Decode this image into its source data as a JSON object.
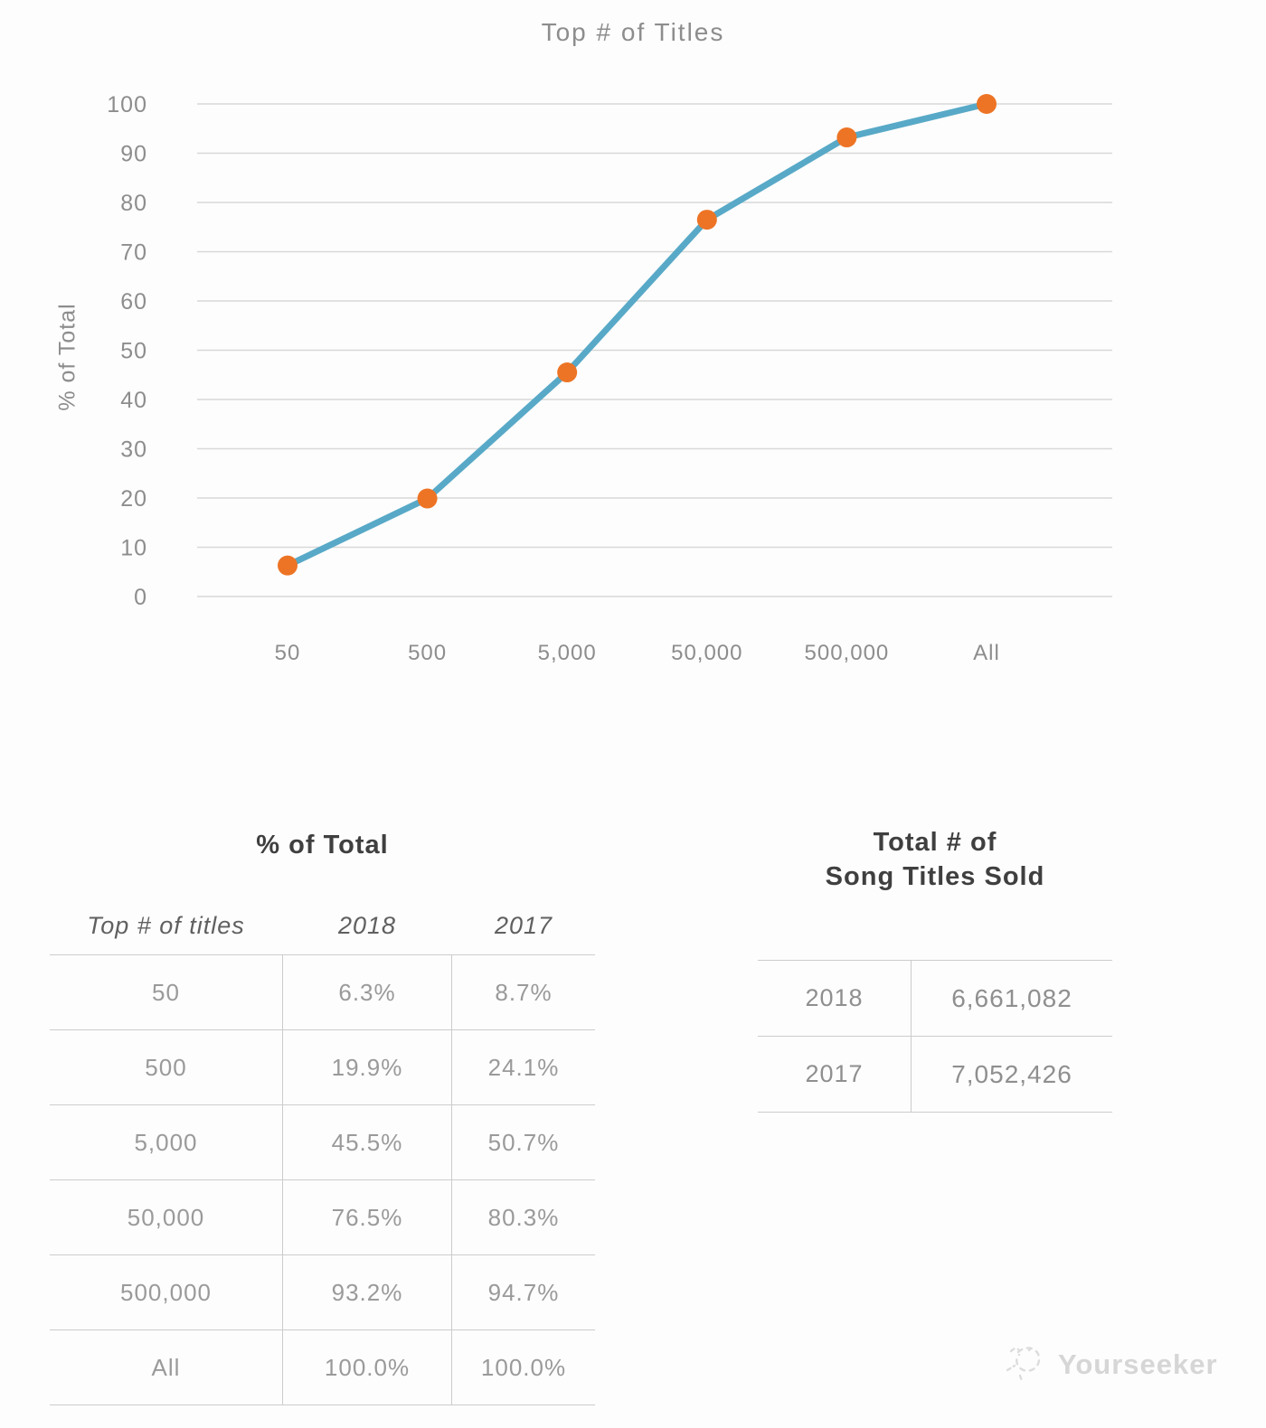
{
  "chart_data": {
    "type": "line",
    "title": "Top # of Titles",
    "xlabel": "",
    "ylabel": "% of Total",
    "categories": [
      "50",
      "500",
      "5,000",
      "50,000",
      "500,000",
      "All"
    ],
    "series": [
      {
        "name": "2018",
        "values": [
          6.3,
          19.9,
          45.5,
          76.5,
          93.2,
          100.0
        ]
      }
    ],
    "ylim": [
      0,
      100
    ],
    "ytick_step": 10,
    "grid": true,
    "legend_position": "none",
    "line_color": "#58a9c7",
    "marker_color": "#ed7425",
    "gridline_color": "#d8d8d8"
  },
  "percent_table": {
    "title": "% of Total",
    "headers": [
      "Top # of titles",
      "2018",
      "2017"
    ],
    "rows": [
      [
        "50",
        "6.3%",
        "8.7%"
      ],
      [
        "500",
        "19.9%",
        "24.1%"
      ],
      [
        "5,000",
        "45.5%",
        "50.7%"
      ],
      [
        "50,000",
        "76.5%",
        "80.3%"
      ],
      [
        "500,000",
        "93.2%",
        "94.7%"
      ],
      [
        "All",
        "100.0%",
        "100.0%"
      ]
    ]
  },
  "totals_table": {
    "title_line1": "Total # of",
    "title_line2": "Song Titles Sold",
    "rows": [
      [
        "2018",
        "6,661,082"
      ],
      [
        "2017",
        "7,052,426"
      ]
    ]
  },
  "watermark": {
    "label": "Yourseeker"
  }
}
